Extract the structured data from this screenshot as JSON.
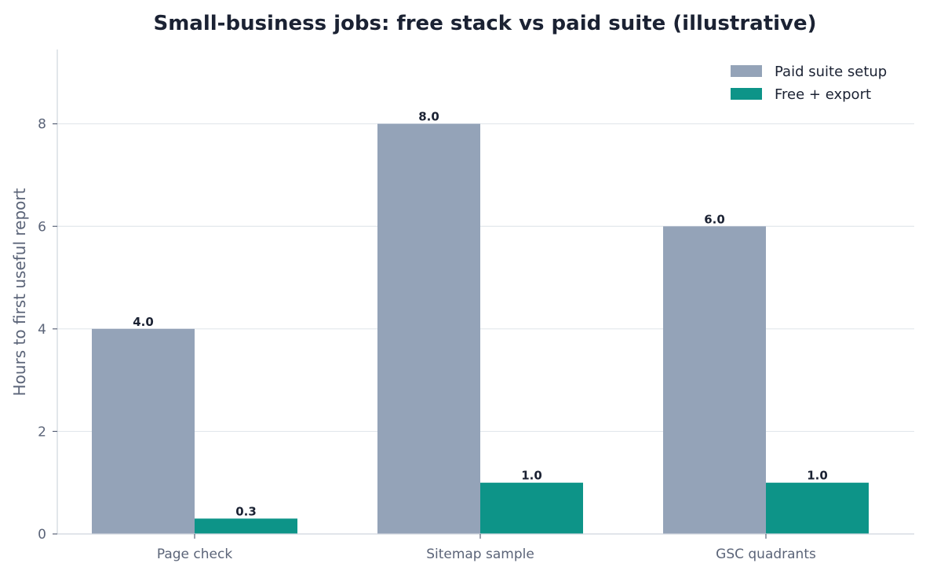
{
  "chart_data": {
    "type": "bar",
    "title": "Small-business jobs: free stack vs paid suite (illustrative)",
    "xlabel": "",
    "ylabel": "Hours to first useful report",
    "categories": [
      "Page check",
      "Sitemap sample",
      "GSC quadrants"
    ],
    "series": [
      {
        "name": "Paid suite setup",
        "values": [
          4.0,
          8.0,
          6.0
        ],
        "color": "#94a3b8"
      },
      {
        "name": "Free + export",
        "values": [
          0.3,
          1.0,
          1.0
        ],
        "color": "#0d9488"
      }
    ],
    "data_labels": [
      [
        "4.0",
        "8.0",
        "6.0"
      ],
      [
        "0.3",
        "1.0",
        "1.0"
      ]
    ],
    "ylim": [
      0,
      9.45
    ],
    "yticks": [
      0,
      2,
      4,
      6,
      8
    ],
    "grid": true,
    "legend_position": "top-right"
  }
}
